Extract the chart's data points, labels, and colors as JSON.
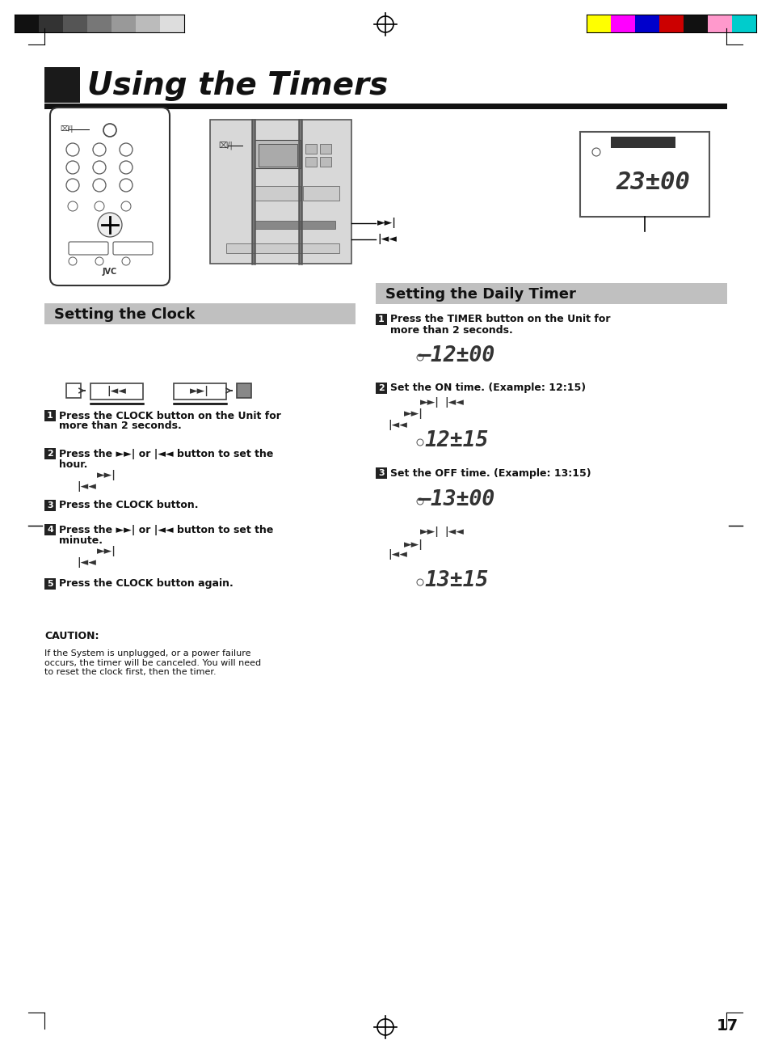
{
  "page_bg": "#ffffff",
  "title_text": "Using the Timers",
  "title_box_color": "#1a1a1a",
  "title_font_size": 28,
  "section1_title": "Setting the Clock",
  "section1_bg": "#c0c0c0",
  "section2_title": "Setting the Daily Timer",
  "section2_bg": "#c0c0c0",
  "caution_title": "CAUTION:",
  "caution_text": "If the System is unplugged, or a power failure\noccurs, the timer will be canceled. You will need\nto reset the clock first, then the timer.",
  "page_number": "17",
  "display_23": "23±00",
  "display_1200": "–12±00",
  "display_1215": "12±15",
  "display_1300": "–13±00",
  "display_1315": "13±15",
  "color_bar_left": [
    "#111111",
    "#333333",
    "#555555",
    "#777777",
    "#999999",
    "#bbbbbb",
    "#dddddd"
  ],
  "color_bar_right": [
    "#ffff00",
    "#ff00ff",
    "#0000cc",
    "#cc0000",
    "#111111",
    "#ff99cc",
    "#00cccc"
  ]
}
